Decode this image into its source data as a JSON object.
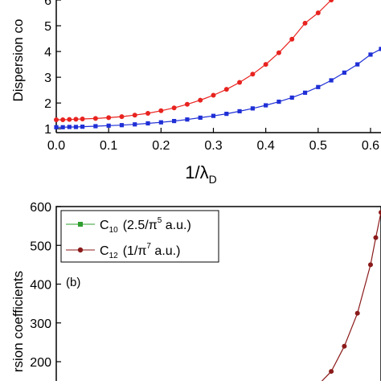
{
  "chart_data": [
    {
      "panel_label": "",
      "type": "scatter",
      "xlabel_main": "1/λ",
      "xlabel_sub": "D",
      "ylabel": "Dispersion co",
      "xlim": [
        0.0,
        0.62
      ],
      "ylim": [
        0.85,
        6.0
      ],
      "x_ticks": [
        "0.0",
        "0.1",
        "0.2",
        "0.3",
        "0.4",
        "0.5",
        "0.6"
      ],
      "y_ticks": [
        "1",
        "2",
        "3",
        "4",
        "5",
        "6"
      ],
      "series": [
        {
          "color": "#e8231f",
          "marker": "circle",
          "x": [
            0.0,
            0.0125,
            0.025,
            0.0375,
            0.05,
            0.075,
            0.1,
            0.125,
            0.15,
            0.175,
            0.2,
            0.225,
            0.25,
            0.275,
            0.3,
            0.325,
            0.35,
            0.375,
            0.4,
            0.425,
            0.45,
            0.475,
            0.5,
            0.525
          ],
          "y": [
            1.35,
            1.35,
            1.36,
            1.37,
            1.38,
            1.4,
            1.43,
            1.47,
            1.53,
            1.6,
            1.7,
            1.81,
            1.95,
            2.11,
            2.3,
            2.53,
            2.8,
            3.12,
            3.5,
            3.95,
            4.48,
            5.1,
            5.5,
            6.0
          ]
        },
        {
          "color": "#1f2fd6",
          "marker": "square",
          "x": [
            0.0,
            0.0125,
            0.025,
            0.0375,
            0.05,
            0.075,
            0.1,
            0.125,
            0.15,
            0.175,
            0.2,
            0.225,
            0.25,
            0.275,
            0.3,
            0.325,
            0.35,
            0.375,
            0.4,
            0.425,
            0.45,
            0.475,
            0.5,
            0.525,
            0.55,
            0.575,
            0.6,
            0.62
          ],
          "y": [
            1.06,
            1.06,
            1.07,
            1.07,
            1.08,
            1.1,
            1.12,
            1.14,
            1.17,
            1.21,
            1.25,
            1.3,
            1.36,
            1.43,
            1.5,
            1.58,
            1.68,
            1.79,
            1.91,
            2.05,
            2.21,
            2.4,
            2.62,
            2.88,
            3.18,
            3.5,
            3.88,
            4.1
          ]
        }
      ]
    },
    {
      "panel_label": "(b)",
      "type": "line",
      "xlabel_main": "",
      "xlabel_sub": "",
      "ylabel": "rsion coefficients",
      "xlim": [
        0.0,
        0.62
      ],
      "ylim": [
        130,
        600
      ],
      "y_ticks": [
        "600",
        "500",
        "400",
        "300",
        "200"
      ],
      "legend": [
        {
          "name": "C",
          "sub": "10",
          "desc_pre": "(2.5/π",
          "sup": "5",
          "desc_post": " a.u.)",
          "color": "#2e9e2e",
          "marker": "square"
        },
        {
          "name": "C",
          "sub": "12",
          "desc_pre": "(1/π",
          "sup": "7",
          "desc_post": " a.u.)",
          "color": "#8b1a1a",
          "marker": "circle"
        }
      ],
      "series": [
        {
          "color": "#8b1a1a",
          "marker": "circle",
          "x": [
            0.5,
            0.525,
            0.55,
            0.575,
            0.6,
            0.61,
            0.62
          ],
          "y": [
            140,
            175,
            240,
            325,
            450,
            520,
            585
          ]
        }
      ]
    }
  ]
}
